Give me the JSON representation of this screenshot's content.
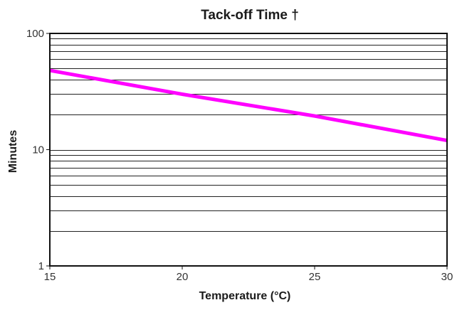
{
  "chart_data": {
    "type": "line",
    "title": "Tack-off Time †",
    "xlabel": "Temperature (°C)",
    "ylabel": "Minutes",
    "xlim": [
      15,
      30
    ],
    "ylim": [
      1,
      100
    ],
    "yscale": "log",
    "x_ticks": [
      15,
      20,
      25,
      30
    ],
    "x_tick_labels": [
      "15",
      "20",
      "25",
      "30"
    ],
    "y_ticks": [
      1,
      10,
      100
    ],
    "y_tick_labels": [
      "1",
      "10",
      "100"
    ],
    "grid": "horizontal",
    "legend": "none",
    "series": [
      {
        "color": "#ff00ff",
        "x": [
          15,
          20,
          25,
          30
        ],
        "y": [
          48,
          30,
          19.5,
          12
        ]
      }
    ]
  }
}
